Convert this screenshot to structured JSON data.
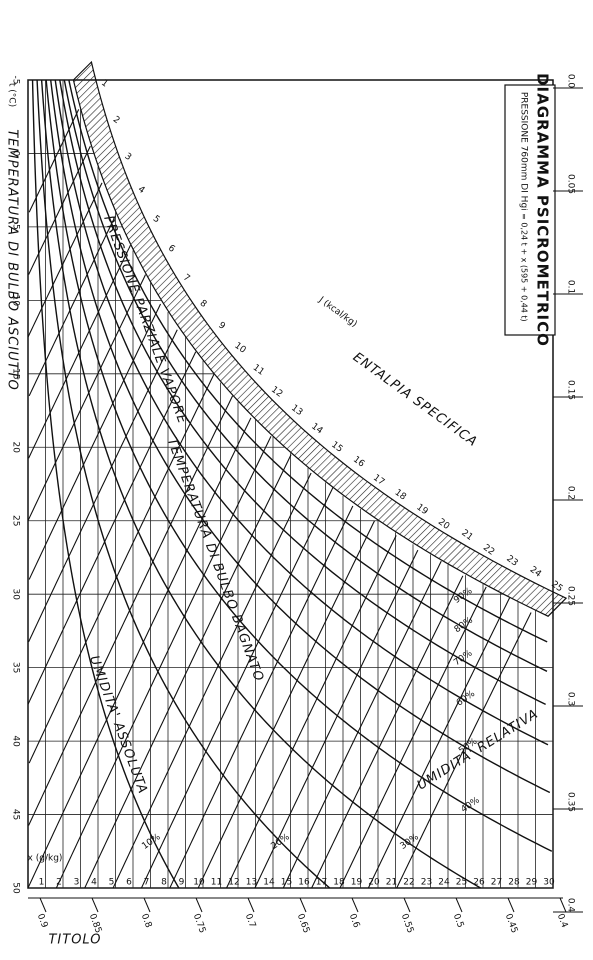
{
  "chart_data": {
    "type": "psychrometric",
    "title": "DIAGRAMMA PSICROMETRICO",
    "subtitle": "PRESSIONE 760mm DI Hg",
    "formula": "i = 0,24 t + x (595 + 0,44 t)",
    "y_label": "TEMPERATURA DI BULBO ASCIUTTO",
    "y_unit": "t (°C)",
    "x_label": "TITOLO",
    "x_unit": "x (g/kg)",
    "enthalpy_label": "ENTALPIA SPECIFICA",
    "enthalpy_unit": "J (kcal/kg)",
    "rh_label": "UMIDITA' RELATIVA",
    "wetbulb_label": "TEMPERATURA DI BULBO BAGNATO",
    "vapour_label": "PRESSIONE PARZIALE VAPORE",
    "absolute_label": "UMIDITA' ASSOLUTA",
    "ylim": [
      -5,
      50
    ],
    "yticks": [
      -5,
      0,
      5,
      10,
      15,
      20,
      25,
      30,
      35,
      40,
      45,
      50
    ],
    "xlim": [
      0,
      30
    ],
    "xticks": [
      1,
      2,
      3,
      4,
      5,
      6,
      7,
      8,
      9,
      10,
      11,
      12,
      13,
      14,
      15,
      16,
      17,
      18,
      19,
      20,
      21,
      22,
      23,
      24,
      25,
      26,
      27,
      28,
      29,
      30
    ],
    "enthalpy_ticks": [
      1,
      2,
      3,
      4,
      5,
      6,
      7,
      8,
      9,
      10,
      11,
      12,
      13,
      14,
      15,
      16,
      17,
      18,
      19,
      20,
      21,
      22,
      23,
      24,
      25
    ],
    "rh_ticks": [
      {
        "value": 10,
        "label": "10%"
      },
      {
        "value": 20,
        "label": "20%"
      },
      {
        "value": 30,
        "label": "30%"
      },
      {
        "value": 40,
        "label": "40%"
      },
      {
        "value": 50,
        "label": "50%"
      },
      {
        "value": 60,
        "label": "60%"
      },
      {
        "value": 70,
        "label": "70%"
      },
      {
        "value": 80,
        "label": "80%"
      },
      {
        "value": 90,
        "label": "90%"
      }
    ],
    "right_scale": [
      {
        "value": 0,
        "label": "0.0"
      },
      0.05,
      0.1,
      0.15,
      0.2,
      0.25,
      0.3,
      0.35,
      0.4
    ],
    "bottom_scale": [
      0.9,
      0.85,
      0.8,
      0.75,
      0.7,
      0.65,
      0.6,
      0.55,
      0.5,
      0.45,
      0.4
    ]
  }
}
